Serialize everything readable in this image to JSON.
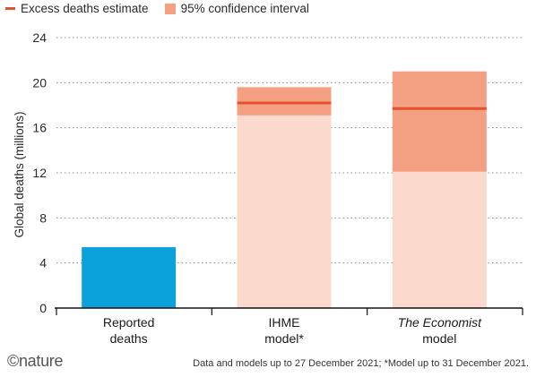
{
  "colors": {
    "reported": "#0ba2dc",
    "excess_line": "#e8502d",
    "ci_band": "#f4a083",
    "bar_fill": "#fbd9cc"
  },
  "legend": {
    "line_label": "Excess deaths estimate",
    "band_label": "95% confidence interval"
  },
  "footer": {
    "logo": "©nature",
    "note": "Data and models up to 27 December 2021; *Model up to 31 December 2021."
  },
  "chart_data": {
    "type": "bar",
    "ylabel": "Global deaths (millions)",
    "ylim": [
      0,
      24
    ],
    "yticks": [
      0,
      4,
      8,
      12,
      16,
      20,
      24
    ],
    "grid": true,
    "legend_position": "top-left",
    "categories": [
      {
        "lines": [
          "Reported",
          "deaths"
        ],
        "italic_first": false
      },
      {
        "lines": [
          "IHME",
          "model*"
        ],
        "italic_first": false
      },
      {
        "lines": [
          "The Economist",
          "model"
        ],
        "italic_first": true
      }
    ],
    "bars": [
      {
        "kind": "reported",
        "value": 5.4
      },
      {
        "kind": "estimate",
        "value": 18.2,
        "ci_low": 17.1,
        "ci_high": 19.6,
        "bar_top": 19.6
      },
      {
        "kind": "estimate",
        "value": 17.7,
        "ci_low": 12.1,
        "ci_high": 21.0,
        "bar_top": 21.0
      }
    ]
  }
}
